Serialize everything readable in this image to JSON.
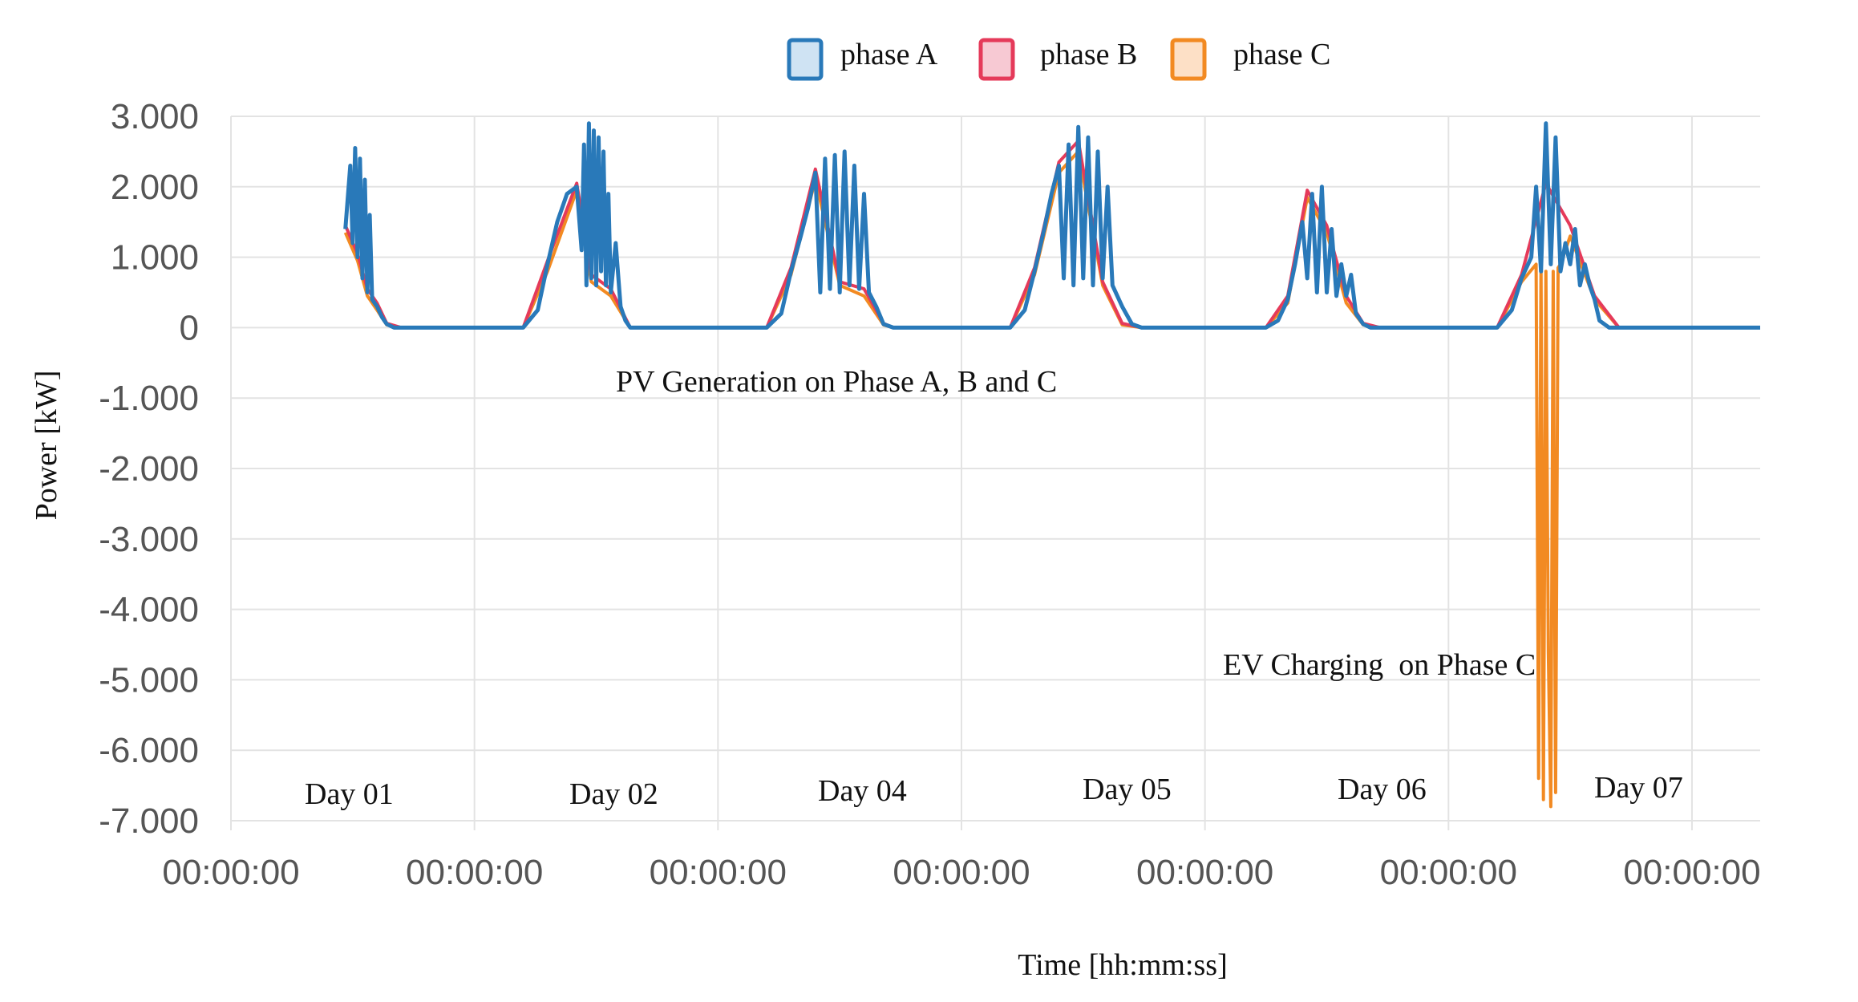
{
  "chart_data": {
    "type": "line",
    "xlabel": "Time [hh:mm:ss]",
    "ylabel": "Power [kW]",
    "ylim": [
      -7000,
      3000
    ],
    "xlim": [
      0,
      6.28
    ],
    "y_ticks": [
      3000,
      2000,
      1000,
      0,
      -1000,
      -2000,
      -3000,
      -4000,
      -5000,
      -6000,
      -7000
    ],
    "y_tick_labels": [
      "3.000",
      "2.000",
      "1.000",
      "0",
      "-1.000",
      "-2.000",
      "-3.000",
      "-4.000",
      "-5.000",
      "-6.000",
      "-7.000"
    ],
    "x_ticks": [
      0,
      1,
      2,
      3,
      4,
      5,
      6
    ],
    "x_tick_labels": [
      "00:00:00",
      "00:00:00",
      "00:00:00",
      "00:00:00",
      "00:00:00",
      "00:00:00",
      "00:00:00"
    ],
    "grid": true,
    "legend_position": "top-center",
    "series": [
      {
        "name": "phase A",
        "color": "#2979b9",
        "x": [
          0.47,
          0.49,
          0.5,
          0.51,
          0.52,
          0.53,
          0.54,
          0.55,
          0.56,
          0.57,
          0.58,
          0.6,
          0.62,
          0.64,
          0.67,
          0.7,
          1.2,
          1.26,
          1.3,
          1.34,
          1.38,
          1.42,
          1.44,
          1.45,
          1.46,
          1.47,
          1.48,
          1.49,
          1.5,
          1.51,
          1.52,
          1.53,
          1.54,
          1.55,
          1.56,
          1.58,
          1.6,
          1.62,
          1.64,
          1.66,
          1.7,
          2.2,
          2.26,
          2.3,
          2.34,
          2.37,
          2.4,
          2.42,
          2.44,
          2.46,
          2.48,
          2.5,
          2.52,
          2.54,
          2.56,
          2.58,
          2.6,
          2.62,
          2.65,
          2.68,
          2.72,
          3.2,
          3.26,
          3.3,
          3.34,
          3.37,
          3.4,
          3.42,
          3.44,
          3.46,
          3.48,
          3.5,
          3.52,
          3.54,
          3.56,
          3.58,
          3.6,
          3.62,
          3.66,
          3.7,
          3.74,
          4.25,
          4.3,
          4.34,
          4.37,
          4.4,
          4.42,
          4.44,
          4.46,
          4.48,
          4.5,
          4.52,
          4.54,
          4.56,
          4.58,
          4.6,
          4.62,
          4.65,
          4.68,
          4.72,
          5.2,
          5.26,
          5.3,
          5.34,
          5.36,
          5.38,
          5.4,
          5.42,
          5.44,
          5.46,
          5.48,
          5.5,
          5.52,
          5.54,
          5.56,
          5.58,
          5.6,
          5.62,
          5.66,
          5.7,
          6.28
        ],
        "y": [
          1400,
          2300,
          1200,
          2550,
          1000,
          2400,
          700,
          2100,
          500,
          1600,
          400,
          300,
          150,
          50,
          0,
          0,
          0,
          250,
          900,
          1500,
          1900,
          2000,
          1100,
          2600,
          600,
          2900,
          700,
          2800,
          600,
          2700,
          800,
          2500,
          600,
          1900,
          500,
          1200,
          300,
          100,
          0,
          0,
          0,
          0,
          200,
          800,
          1300,
          1700,
          2200,
          500,
          2400,
          550,
          2450,
          500,
          2500,
          600,
          2300,
          550,
          1900,
          500,
          300,
          50,
          0,
          0,
          250,
          800,
          1400,
          1900,
          2300,
          700,
          2600,
          600,
          2850,
          700,
          2700,
          600,
          2500,
          700,
          2000,
          600,
          300,
          50,
          0,
          0,
          100,
          400,
          900,
          1500,
          700,
          1900,
          500,
          2000,
          500,
          1400,
          450,
          900,
          450,
          750,
          200,
          50,
          0,
          0,
          0,
          250,
          700,
          1000,
          2000,
          800,
          2900,
          900,
          2700,
          800,
          1200,
          900,
          1400,
          600,
          900,
          600,
          400,
          100,
          0,
          0,
          0
        ]
      },
      {
        "name": "phase B",
        "color": "#e53a5a",
        "x": [
          0.47,
          0.52,
          0.56,
          0.6,
          0.64,
          0.7,
          1.2,
          1.3,
          1.42,
          1.48,
          1.56,
          1.64,
          1.7,
          2.2,
          2.3,
          2.4,
          2.5,
          2.6,
          2.68,
          2.72,
          3.2,
          3.3,
          3.4,
          3.48,
          3.58,
          3.66,
          3.74,
          4.25,
          4.34,
          4.42,
          4.5,
          4.58,
          4.65,
          4.72,
          5.2,
          5.3,
          5.4,
          5.5,
          5.6,
          5.7,
          6.28
        ],
        "y": [
          1450,
          1050,
          550,
          350,
          60,
          0,
          0,
          950,
          2050,
          750,
          550,
          0,
          0,
          0,
          850,
          2250,
          650,
          550,
          60,
          0,
          0,
          850,
          2350,
          2650,
          650,
          60,
          0,
          0,
          450,
          1950,
          1450,
          450,
          60,
          0,
          0,
          750,
          2050,
          1450,
          450,
          0,
          0
        ]
      },
      {
        "name": "phase C",
        "color": "#f28a22",
        "x": [
          0.47,
          0.52,
          0.56,
          0.6,
          0.64,
          0.7,
          1.2,
          1.3,
          1.42,
          1.48,
          1.56,
          1.64,
          1.7,
          2.2,
          2.3,
          2.4,
          2.5,
          2.6,
          2.68,
          2.72,
          3.2,
          3.3,
          3.4,
          3.48,
          3.58,
          3.66,
          3.74,
          4.25,
          4.34,
          4.42,
          4.5,
          4.58,
          4.65,
          4.72,
          5.2,
          5.3,
          5.36,
          5.37,
          5.38,
          5.39,
          5.4,
          5.41,
          5.42,
          5.43,
          5.44,
          5.45,
          5.46,
          5.5,
          5.6,
          5.7,
          6.28
        ],
        "y": [
          1350,
          950,
          450,
          250,
          40,
          0,
          0,
          800,
          1950,
          650,
          450,
          0,
          0,
          0,
          750,
          2100,
          600,
          450,
          40,
          0,
          0,
          750,
          2200,
          2500,
          600,
          40,
          0,
          0,
          350,
          1850,
          1350,
          350,
          40,
          0,
          0,
          650,
          900,
          -6400,
          900,
          -6700,
          800,
          -4600,
          -6800,
          800,
          -6600,
          850,
          900,
          1300,
          400,
          0,
          0
        ]
      }
    ],
    "annotations": [
      "PV Generation on Phase A, B and C",
      "EV Charging  on Phase C"
    ],
    "day_labels": [
      "Day 01",
      "Day 02",
      "Day 04",
      "Day 05",
      "Day 06",
      "Day 07"
    ]
  }
}
